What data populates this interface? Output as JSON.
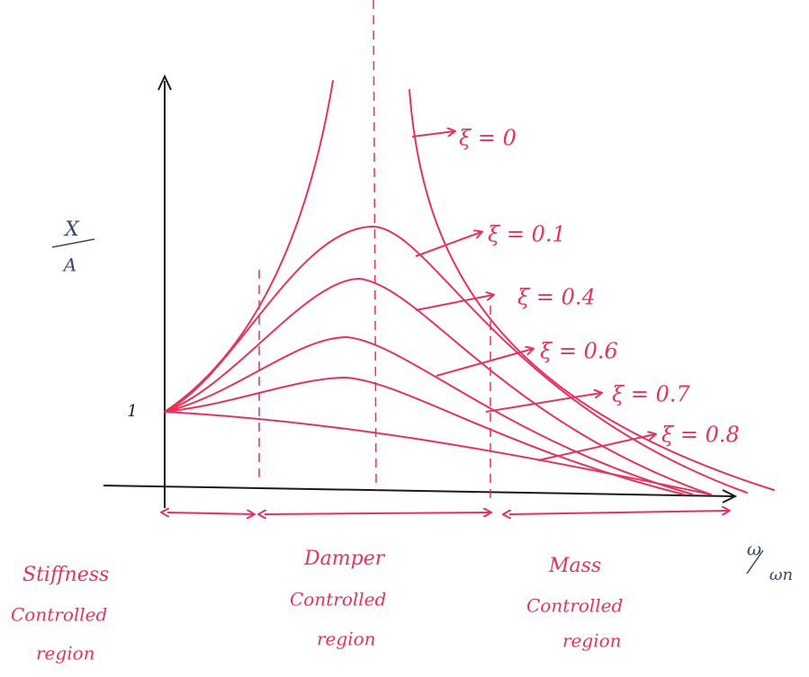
{
  "axes": {
    "y_label": {
      "numerator": "X",
      "denominator": "A"
    },
    "y_mark": "1",
    "x_label": {
      "numerator": "ω",
      "denominator": "ωn"
    }
  },
  "curves": [
    {
      "label": "ξ = 0"
    },
    {
      "label": "ξ = 0.1"
    },
    {
      "label": "ξ = 0.4"
    },
    {
      "label": "ξ = 0.6"
    },
    {
      "label": "ξ = 0.7"
    },
    {
      "label": "ξ = 0.8"
    }
  ],
  "regions": [
    {
      "lines": [
        "Stiffness",
        "Controlled",
        "region"
      ]
    },
    {
      "lines": [
        "Damper",
        "Controlled",
        "region"
      ]
    },
    {
      "lines": [
        "Mass",
        "Controlled",
        "region"
      ]
    }
  ]
}
